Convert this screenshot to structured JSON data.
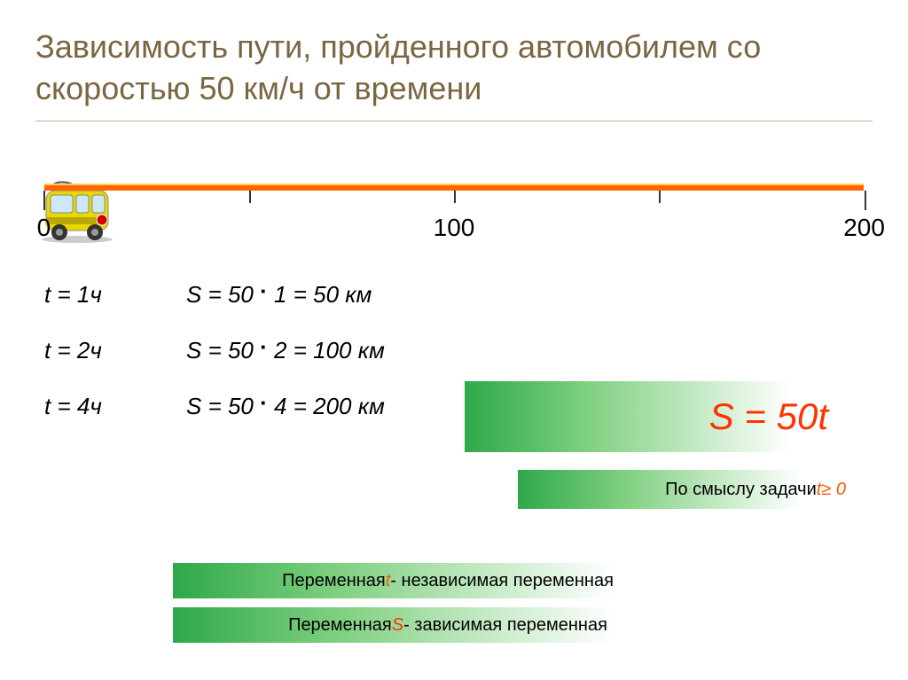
{
  "title": "Зависимость пути, пройденного автомобилем со скоростью 50 км/ч от времени",
  "numberline": {
    "color": "#ff6600",
    "highlight_color": "#ffcc66",
    "min": 0,
    "max": 200,
    "labels": [
      "0",
      "100",
      "200"
    ],
    "label_positions_pct": [
      1,
      50,
      99
    ],
    "tick_positions_pct": [
      1,
      25.5,
      50,
      74.5,
      99
    ],
    "tall_ticks": [
      0,
      4
    ]
  },
  "equations": {
    "rows": [
      {
        "t": "t = 1ч",
        "s_prefix": "S = 50",
        "s_suffix": "1 = 50 км"
      },
      {
        "t": "t = 2ч",
        "s_prefix": "S = 50",
        "s_suffix": "2 = 100 км"
      },
      {
        "t": "t = 4ч",
        "s_prefix": "S = 50",
        "s_suffix": "4 = 200 км"
      }
    ],
    "dot": "·"
  },
  "formula": {
    "S": "S",
    "eq": " = 50",
    "t": "t"
  },
  "constraint": {
    "text": "По смыслу задачи  ",
    "var": "t",
    "cond": "  ≥ 0"
  },
  "variables": {
    "line1_pre": "Переменная   ",
    "line1_var": "t",
    "line1_post": "   - независимая переменная",
    "line2_pre": "Переменная   ",
    "line2_var": "S",
    "line2_post": "  - зависимая переменная"
  },
  "colors": {
    "title": "#7a6642",
    "orange": "#ff5500",
    "red": "#ff3300",
    "green_start": "#2ea84a",
    "bus_body": "#e8d800",
    "bus_dark": "#b8a800"
  }
}
